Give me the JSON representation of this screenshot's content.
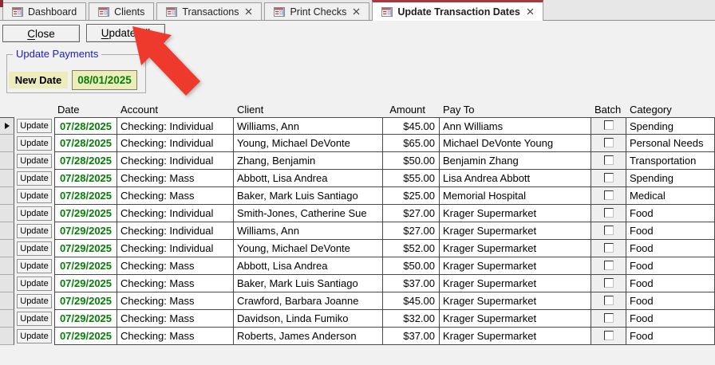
{
  "colors": {
    "arrow_red": "#EE3A2C",
    "active_tab_accent": "#A63940",
    "group_label_blue": "#1A1AC8",
    "date_green": "#077E07",
    "highlight_yellow": "#EDEDBB"
  },
  "tab_bar": {
    "tabs": [
      {
        "label": "Dashboard",
        "closable": false,
        "active": false
      },
      {
        "label": "Clients",
        "closable": false,
        "active": false
      },
      {
        "label": "Transactions",
        "closable": true,
        "active": false
      },
      {
        "label": "Print Checks",
        "closable": true,
        "active": false
      },
      {
        "label": "Update Transaction Dates",
        "closable": true,
        "active": true
      }
    ]
  },
  "toolbar": {
    "close": {
      "accesskey": "C",
      "rest": "lose"
    },
    "update_all": {
      "accesskey": "U",
      "rest": "pdate All"
    }
  },
  "update_payments": {
    "group_label": "Update Payments",
    "new_date_label": "New Date",
    "new_date_value": "08/01/2025"
  },
  "table": {
    "columns": [
      "Date",
      "Account",
      "Client",
      "Amount",
      "Pay To",
      "Batch",
      "Category"
    ],
    "row_action_label": "Update",
    "selected_row_index": 0,
    "rows": [
      {
        "date": "07/28/2025",
        "account": "Checking: Individual",
        "client": "Williams, Ann",
        "amount": "$45.00",
        "pay_to": "Ann Williams",
        "batch_checked": false,
        "category": "Spending"
      },
      {
        "date": "07/28/2025",
        "account": "Checking: Individual",
        "client": "Young, Michael DeVonte",
        "amount": "$65.00",
        "pay_to": "Michael DeVonte Young",
        "batch_checked": false,
        "category": "Personal Needs"
      },
      {
        "date": "07/28/2025",
        "account": "Checking: Individual",
        "client": "Zhang, Benjamin",
        "amount": "$50.00",
        "pay_to": "Benjamin Zhang",
        "batch_checked": false,
        "category": "Transportation"
      },
      {
        "date": "07/28/2025",
        "account": "Checking: Mass",
        "client": "Abbott, Lisa Andrea",
        "amount": "$55.00",
        "pay_to": "Lisa Andrea Abbott",
        "batch_checked": false,
        "category": "Spending"
      },
      {
        "date": "07/28/2025",
        "account": "Checking: Mass",
        "client": "Baker, Mark Luis Santiago",
        "amount": "$25.00",
        "pay_to": "Memorial Hospital",
        "batch_checked": false,
        "category": "Medical"
      },
      {
        "date": "07/29/2025",
        "account": "Checking: Individual",
        "client": "Smith-Jones, Catherine Sue",
        "amount": "$27.00",
        "pay_to": "Krager Supermarket",
        "batch_checked": false,
        "category": "Food"
      },
      {
        "date": "07/29/2025",
        "account": "Checking: Individual",
        "client": "Williams, Ann",
        "amount": "$27.00",
        "pay_to": "Krager Supermarket",
        "batch_checked": false,
        "category": "Food"
      },
      {
        "date": "07/29/2025",
        "account": "Checking: Individual",
        "client": "Young, Michael DeVonte",
        "amount": "$52.00",
        "pay_to": "Krager Supermarket",
        "batch_checked": false,
        "category": "Food"
      },
      {
        "date": "07/29/2025",
        "account": "Checking: Mass",
        "client": "Abbott, Lisa Andrea",
        "amount": "$50.00",
        "pay_to": "Krager Supermarket",
        "batch_checked": false,
        "category": "Food"
      },
      {
        "date": "07/29/2025",
        "account": "Checking: Mass",
        "client": "Baker, Mark Luis Santiago",
        "amount": "$37.00",
        "pay_to": "Krager Supermarket",
        "batch_checked": false,
        "category": "Food"
      },
      {
        "date": "07/29/2025",
        "account": "Checking: Mass",
        "client": "Crawford, Barbara Joanne",
        "amount": "$45.00",
        "pay_to": "Krager Supermarket",
        "batch_checked": false,
        "category": "Food"
      },
      {
        "date": "07/29/2025",
        "account": "Checking: Mass",
        "client": "Davidson, Linda Fumiko",
        "amount": "$32.00",
        "pay_to": "Krager Supermarket",
        "batch_checked": false,
        "category": "Food"
      },
      {
        "date": "07/29/2025",
        "account": "Checking: Mass",
        "client": "Roberts, James Anderson",
        "amount": "$37.00",
        "pay_to": "Krager Supermarket",
        "batch_checked": false,
        "category": "Food"
      }
    ]
  }
}
